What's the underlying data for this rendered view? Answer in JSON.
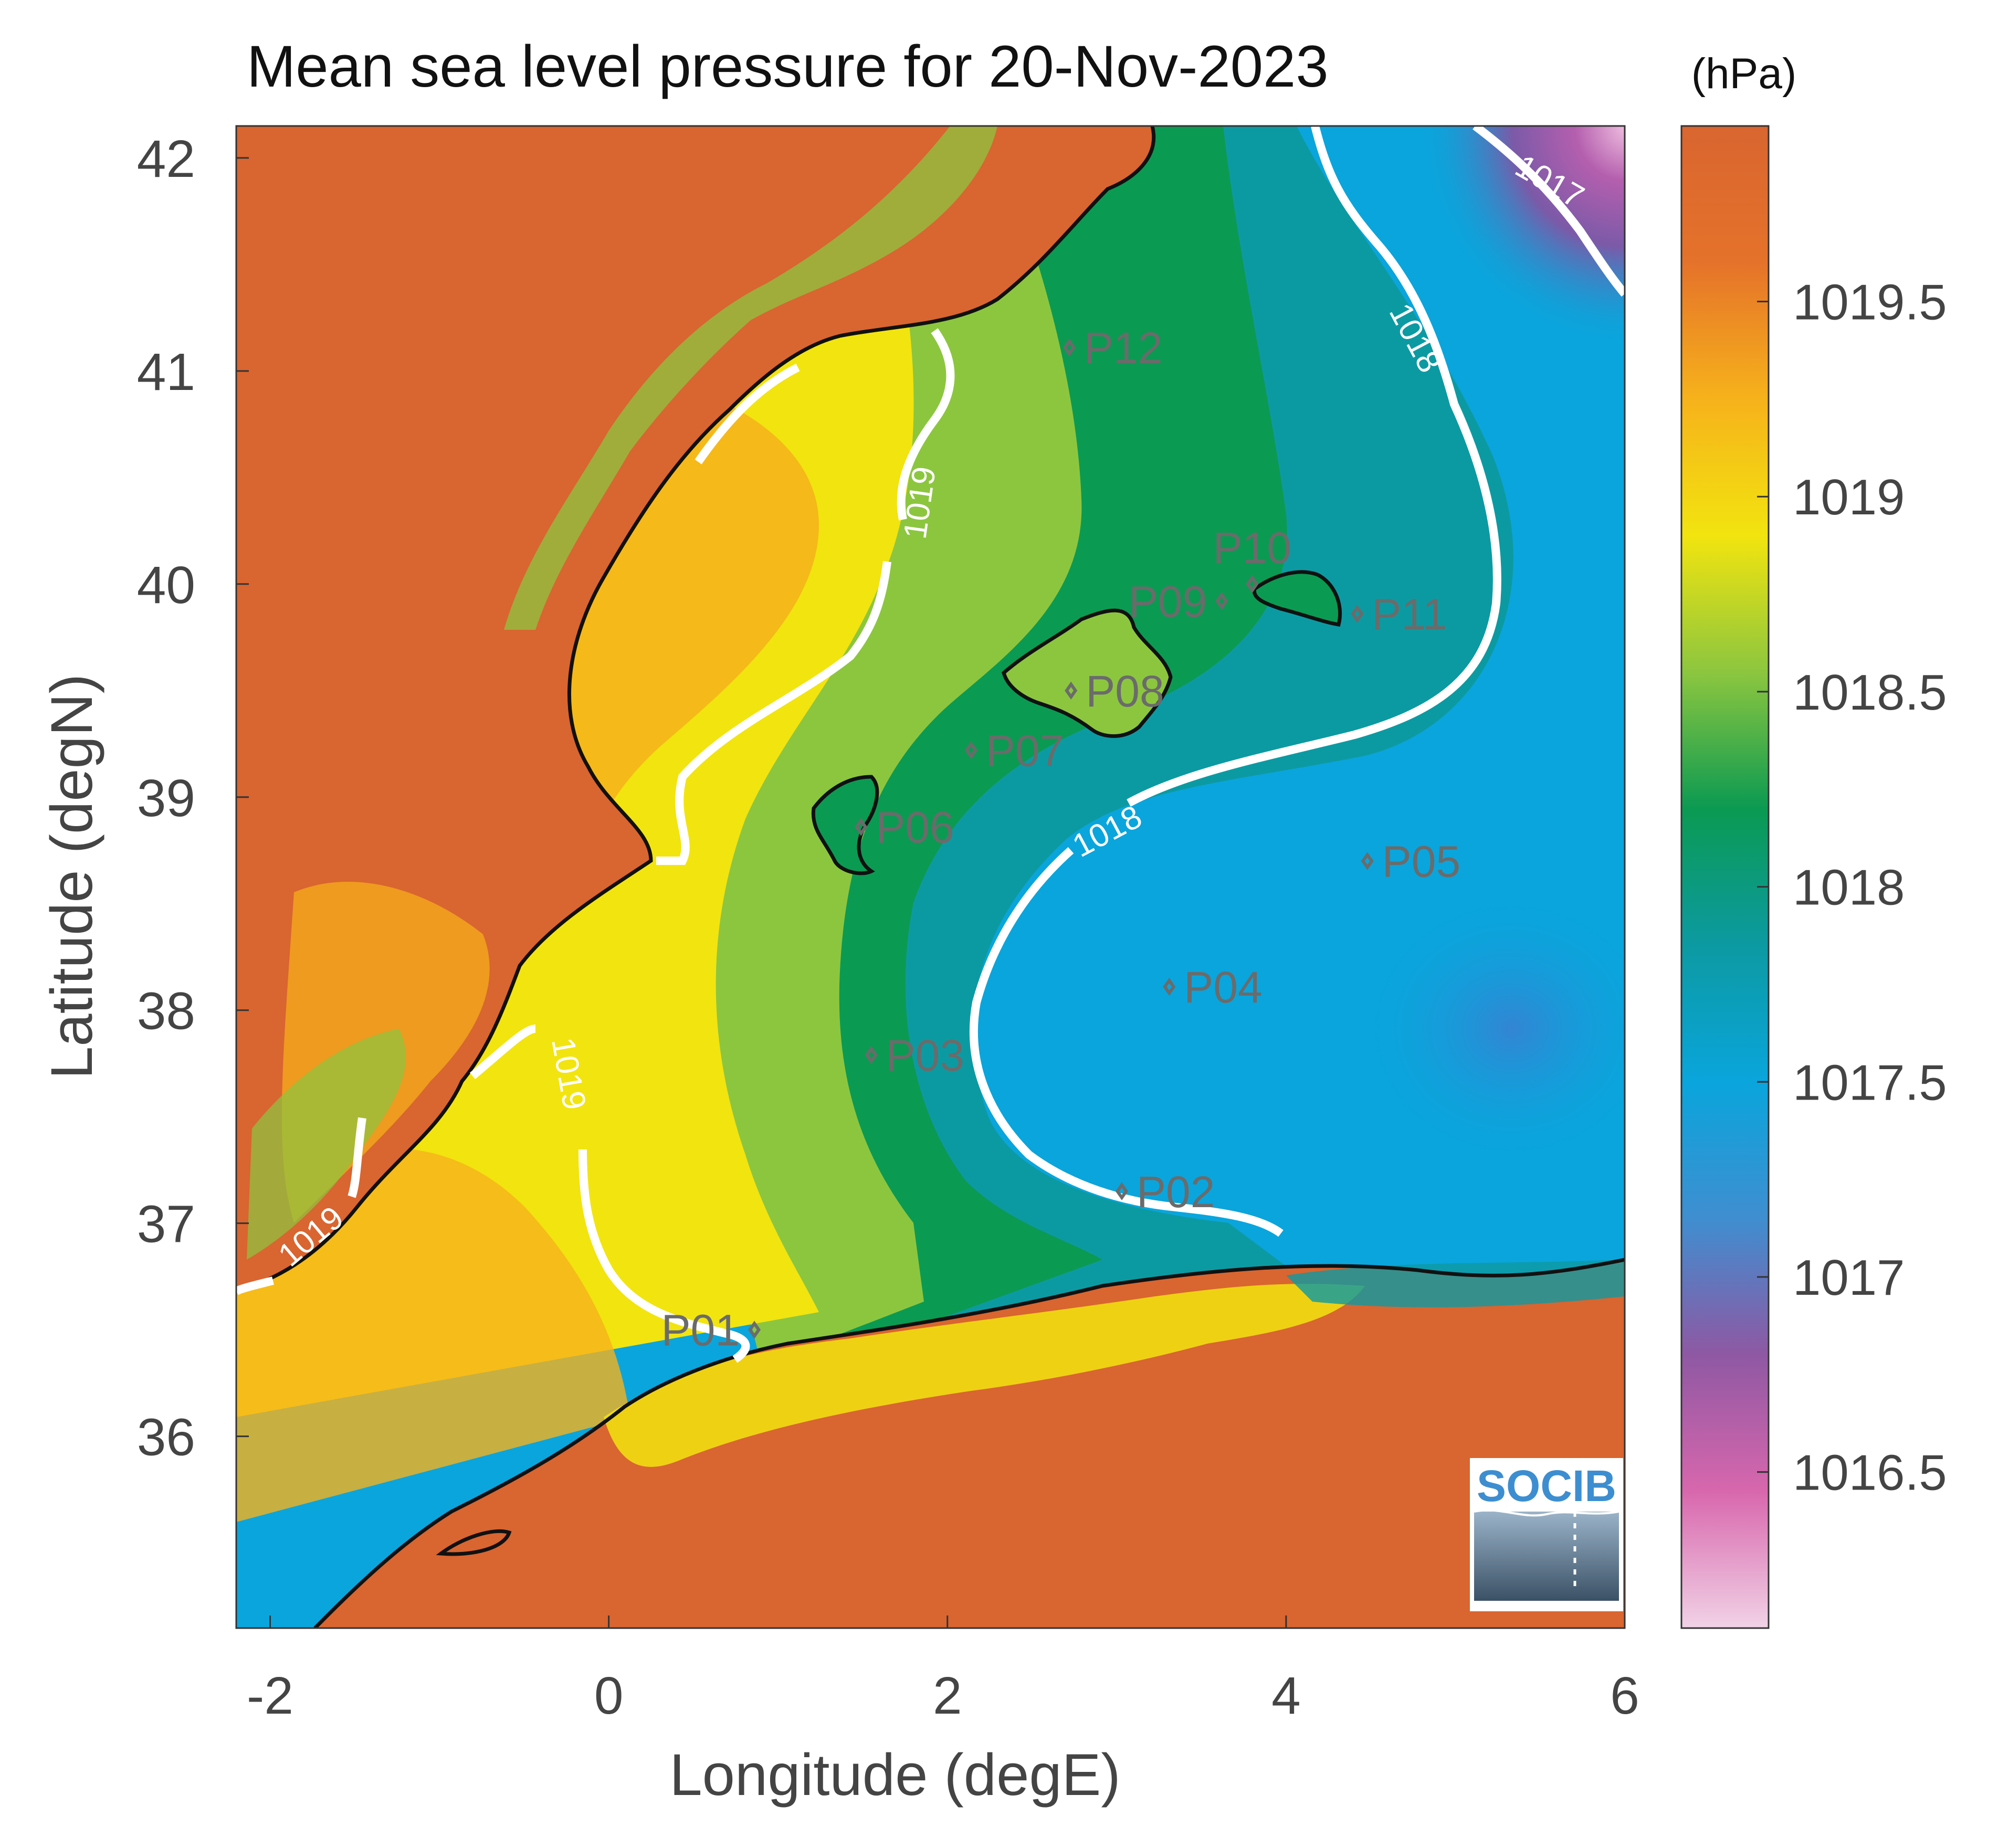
{
  "title": "Mean sea level pressure for 20-Nov-2023",
  "units_label": "(hPa)",
  "x_axis": {
    "label": "Longitude (degE)",
    "range": [
      -2.2,
      6.0
    ],
    "ticks": [
      {
        "value": -2,
        "label": "-2"
      },
      {
        "value": 0,
        "label": "0"
      },
      {
        "value": 2,
        "label": "2"
      },
      {
        "value": 4,
        "label": "4"
      },
      {
        "value": 6,
        "label": "6"
      }
    ]
  },
  "y_axis": {
    "label": "Latitude (degN)",
    "range": [
      35.1,
      42.15
    ],
    "ticks": [
      {
        "value": 36,
        "label": "36"
      },
      {
        "value": 37,
        "label": "37"
      },
      {
        "value": 38,
        "label": "38"
      },
      {
        "value": 39,
        "label": "39"
      },
      {
        "value": 40,
        "label": "40"
      },
      {
        "value": 41,
        "label": "41"
      },
      {
        "value": 42,
        "label": "42"
      }
    ]
  },
  "colorbar": {
    "range": [
      1016.1,
      1019.95
    ],
    "ticks": [
      {
        "value": 1016.5,
        "label": "1016.5"
      },
      {
        "value": 1017,
        "label": "1017"
      },
      {
        "value": 1017.5,
        "label": "1017.5"
      },
      {
        "value": 1018,
        "label": "1018"
      },
      {
        "value": 1018.5,
        "label": "1018.5"
      },
      {
        "value": 1019,
        "label": "1019"
      },
      {
        "value": 1019.5,
        "label": "1019.5"
      }
    ],
    "colors": [
      "#f1d2e6",
      "#d867ad",
      "#8f58a3",
      "#3f8ed0",
      "#0aa5dc",
      "#0c9aa2",
      "#0b9a52",
      "#8cc63f",
      "#f2e40f",
      "#f6b21b",
      "#e5722a",
      "#d96530"
    ]
  },
  "contour_labels": [
    {
      "text": "1017",
      "lon": 5.55,
      "lat": 41.88,
      "rot": 30
    },
    {
      "text": "1018",
      "lon": 4.75,
      "lat": 41.15,
      "rot": 62
    },
    {
      "text": "1019",
      "lon": 1.85,
      "lat": 40.38,
      "rot": -82
    },
    {
      "text": "1018",
      "lon": 2.95,
      "lat": 38.83,
      "rot": -28
    },
    {
      "text": "1019",
      "lon": -0.25,
      "lat": 37.7,
      "rot": 80
    },
    {
      "text": "1019",
      "lon": -1.75,
      "lat": 36.93,
      "rot": -40
    }
  ],
  "points": [
    {
      "id": "P01",
      "lon": 0.86,
      "lat": 36.5,
      "label_side": "left"
    },
    {
      "id": "P02",
      "lon": 3.03,
      "lat": 37.15,
      "label_side": "right"
    },
    {
      "id": "P03",
      "lon": 1.55,
      "lat": 37.79,
      "label_side": "right"
    },
    {
      "id": "P04",
      "lon": 3.31,
      "lat": 38.11,
      "label_side": "right"
    },
    {
      "id": "P05",
      "lon": 4.48,
      "lat": 38.7,
      "label_side": "right"
    },
    {
      "id": "P06",
      "lon": 1.49,
      "lat": 38.86,
      "label_side": "right"
    },
    {
      "id": "P07",
      "lon": 2.14,
      "lat": 39.22,
      "label_side": "right"
    },
    {
      "id": "P08",
      "lon": 2.73,
      "lat": 39.5,
      "label_side": "right"
    },
    {
      "id": "P09",
      "lon": 3.62,
      "lat": 39.92,
      "label_side": "left"
    },
    {
      "id": "P10",
      "lon": 3.8,
      "lat": 40.0,
      "label_side": "above"
    },
    {
      "id": "P11",
      "lon": 4.42,
      "lat": 39.86,
      "label_side": "right"
    },
    {
      "id": "P12",
      "lon": 2.72,
      "lat": 41.11,
      "label_side": "right"
    }
  ],
  "logo_text": "SOCIB"
}
